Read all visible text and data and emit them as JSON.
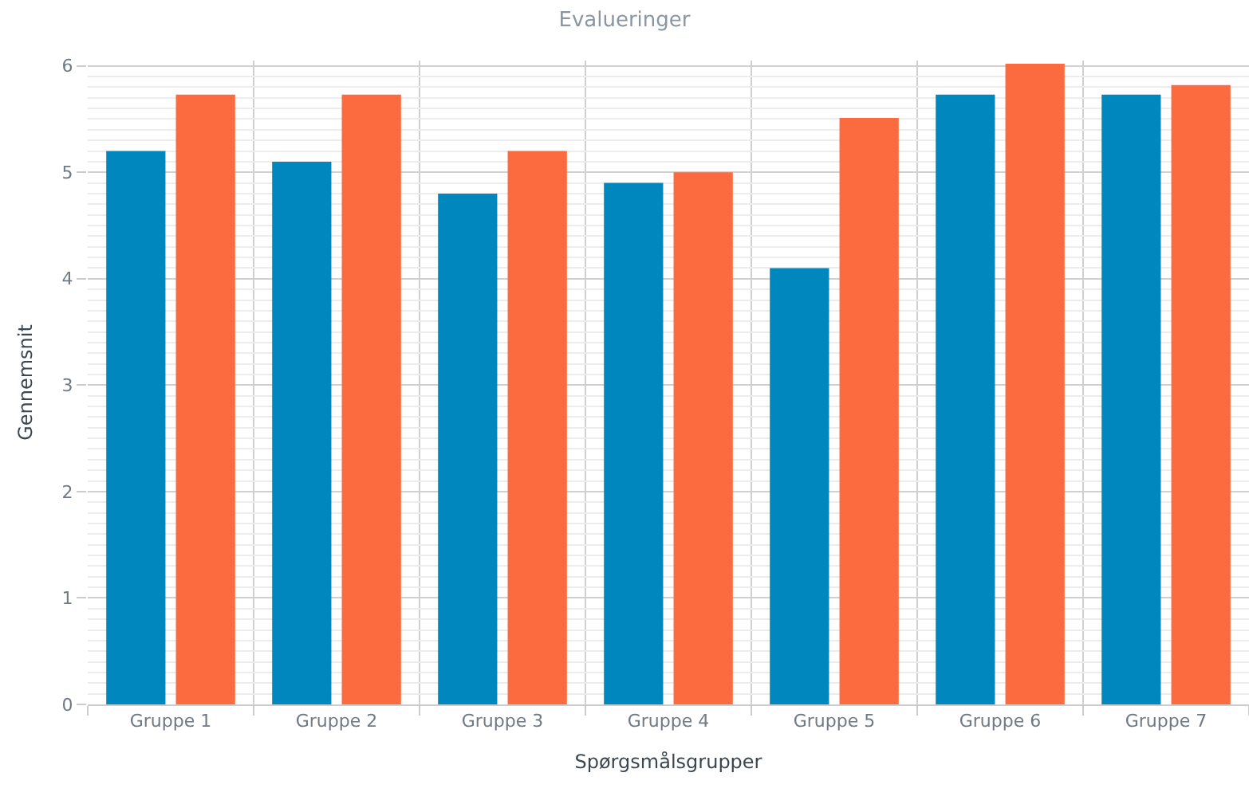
{
  "chart_data": {
    "type": "bar",
    "title": "Evalueringer",
    "xlabel": "Spørgsmålsgrupper",
    "ylabel": "Gennemsnit",
    "categories": [
      "Gruppe 1",
      "Gruppe 2",
      "Gruppe 3",
      "Gruppe 4",
      "Gruppe 5",
      "Gruppe 6",
      "Gruppe 7"
    ],
    "series": [
      {
        "color": "#0087be",
        "values": [
          5.2,
          5.1,
          4.8,
          4.9,
          4.1,
          5.73,
          5.73
        ]
      },
      {
        "color": "#fc6a3f",
        "values": [
          5.73,
          5.73,
          5.2,
          5.0,
          5.51,
          6.02,
          5.82
        ]
      }
    ],
    "ylim": [
      0,
      6.05
    ],
    "yticks": [
      0,
      1,
      2,
      3,
      4,
      5,
      6
    ],
    "grid": true
  }
}
